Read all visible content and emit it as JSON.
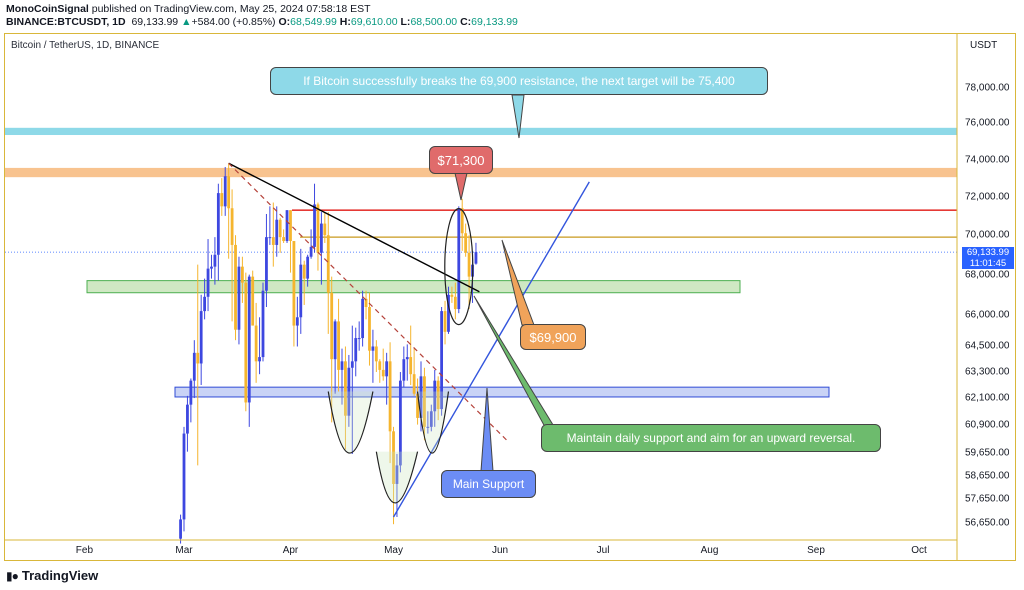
{
  "header": {
    "author": "MonoCoinSignal",
    "published": "published on TradingView.com, May 25, 2024 07:58:18 EST",
    "symbol": "BINANCE:BTCUSDT, 1D",
    "last": "69,133.99",
    "change_arrow": "▲",
    "change": "+584.00 (+0.85%)",
    "o_label": "O:",
    "o": "68,549.99",
    "h_label": "H:",
    "h": "69,610.00",
    "l_label": "L:",
    "l": "68,500.00",
    "c_label": "C:",
    "c": "69,133.99"
  },
  "chart": {
    "symbol_title": "Bitcoin / TetherUS, 1D, BINANCE",
    "currency": "USDT",
    "price_tag_value": "69,133.99",
    "price_tag_time": "11:01:45"
  },
  "annotations": {
    "top_note": "If Bitcoin successfully breaks the 69,900 resistance, the next target will be 75,400",
    "label_71300": "$71,300",
    "label_69900": "$69,900",
    "support_note": "Maintain daily support and aim for an upward reversal.",
    "main_support": "Main Support"
  },
  "footer": {
    "brand": "TradingView",
    "logo_icon": "tradingview-logo-icon"
  },
  "colors": {
    "up": "#089981",
    "candle_yellow": "#f5b52e",
    "candle_blue": "#3d47e0",
    "res_red": "#e53935",
    "res_orange": "#c99a1e",
    "zone_cyan": "#8ed9e8",
    "zone_orange": "#f8c38f",
    "zone_green": "#cfe8c3",
    "zone_blue": "#c9d3f6"
  },
  "chart_data": {
    "type": "candlestick",
    "title": "Bitcoin / TetherUS, 1D, BINANCE",
    "ylabel": "USDT",
    "x_ticks": [
      "Feb",
      "Mar",
      "Apr",
      "May",
      "Jun",
      "Jul",
      "Aug",
      "Sep",
      "Oct"
    ],
    "y_ticks": [
      "78,000.00",
      "76,000.00",
      "74,000.00",
      "72,000.00",
      "70,000.00",
      "68,000.00",
      "66,000.00",
      "64,500.00",
      "63,300.00",
      "62,100.00",
      "60,900.00",
      "59,650.00",
      "58,650.00",
      "57,650.00",
      "56,650.00"
    ],
    "y_scale": "log",
    "ylim": [
      56000,
      80000
    ],
    "levels": {
      "resistance_red": 71300,
      "resistance_orange": 69900,
      "target_zone": [
        75350,
        75750
      ],
      "upper_zone": [
        73050,
        73550
      ],
      "daily_support_zone": [
        67100,
        67700
      ],
      "main_support_zone": [
        62150,
        62600
      ]
    },
    "candles": [
      {
        "d": "2024-02-29",
        "o": 56000,
        "h": 57000,
        "l": 55800,
        "c": 56800
      },
      {
        "d": "2024-03-01",
        "o": 56800,
        "h": 60800,
        "l": 56300,
        "c": 60500
      },
      {
        "d": "2024-03-02",
        "o": 60500,
        "h": 62200,
        "l": 59700,
        "c": 61800
      },
      {
        "d": "2024-03-03",
        "o": 61800,
        "h": 63000,
        "l": 61000,
        "c": 62900
      },
      {
        "d": "2024-03-04",
        "o": 62900,
        "h": 64800,
        "l": 62100,
        "c": 64200
      },
      {
        "d": "2024-03-05",
        "o": 64200,
        "h": 68500,
        "l": 59100,
        "c": 63700
      },
      {
        "d": "2024-03-06",
        "o": 63700,
        "h": 67000,
        "l": 62700,
        "c": 66200
      },
      {
        "d": "2024-03-07",
        "o": 66200,
        "h": 67800,
        "l": 65800,
        "c": 66900
      },
      {
        "d": "2024-03-08",
        "o": 66900,
        "h": 69800,
        "l": 66200,
        "c": 68300
      },
      {
        "d": "2024-03-09",
        "o": 68300,
        "h": 69000,
        "l": 67800,
        "c": 68400
      },
      {
        "d": "2024-03-10",
        "o": 68400,
        "h": 69900,
        "l": 67500,
        "c": 69000
      },
      {
        "d": "2024-03-11",
        "o": 69000,
        "h": 72700,
        "l": 67700,
        "c": 72200
      },
      {
        "d": "2024-03-12",
        "o": 72200,
        "h": 73000,
        "l": 71000,
        "c": 71500
      },
      {
        "d": "2024-03-13",
        "o": 71500,
        "h": 73600,
        "l": 71000,
        "c": 73100
      },
      {
        "d": "2024-03-14",
        "o": 73100,
        "h": 73800,
        "l": 68800,
        "c": 71400
      },
      {
        "d": "2024-03-15",
        "o": 71400,
        "h": 72400,
        "l": 65700,
        "c": 69500
      },
      {
        "d": "2024-03-16",
        "o": 69500,
        "h": 70000,
        "l": 64800,
        "c": 65300
      },
      {
        "d": "2024-03-17",
        "o": 65300,
        "h": 68900,
        "l": 64600,
        "c": 68400
      },
      {
        "d": "2024-03-18",
        "o": 68400,
        "h": 68900,
        "l": 66600,
        "c": 67600
      },
      {
        "d": "2024-03-19",
        "o": 67600,
        "h": 68100,
        "l": 61500,
        "c": 61900
      },
      {
        "d": "2024-03-20",
        "o": 61900,
        "h": 68000,
        "l": 60800,
        "c": 67900
      },
      {
        "d": "2024-03-21",
        "o": 67900,
        "h": 68200,
        "l": 65500,
        "c": 65500
      },
      {
        "d": "2024-03-22",
        "o": 65500,
        "h": 66600,
        "l": 62800,
        "c": 63800
      },
      {
        "d": "2024-03-23",
        "o": 63800,
        "h": 65900,
        "l": 63200,
        "c": 64000
      },
      {
        "d": "2024-03-24",
        "o": 64000,
        "h": 67600,
        "l": 63800,
        "c": 67200
      },
      {
        "d": "2024-03-25",
        "o": 67200,
        "h": 71100,
        "l": 66400,
        "c": 69900
      },
      {
        "d": "2024-03-26",
        "o": 69900,
        "h": 71500,
        "l": 69500,
        "c": 69900
      },
      {
        "d": "2024-03-27",
        "o": 69900,
        "h": 71700,
        "l": 68400,
        "c": 69500
      },
      {
        "d": "2024-03-28",
        "o": 69500,
        "h": 71500,
        "l": 68900,
        "c": 70800
      },
      {
        "d": "2024-03-29",
        "o": 70800,
        "h": 70900,
        "l": 69100,
        "c": 69900
      },
      {
        "d": "2024-03-30",
        "o": 69900,
        "h": 70300,
        "l": 69600,
        "c": 69700
      },
      {
        "d": "2024-03-31",
        "o": 69700,
        "h": 71300,
        "l": 69600,
        "c": 71300
      },
      {
        "d": "2024-04-01",
        "o": 71300,
        "h": 71300,
        "l": 68100,
        "c": 69700
      },
      {
        "d": "2024-04-02",
        "o": 69700,
        "h": 69700,
        "l": 64500,
        "c": 65500
      },
      {
        "d": "2024-04-03",
        "o": 65500,
        "h": 66900,
        "l": 64500,
        "c": 65900
      },
      {
        "d": "2024-04-04",
        "o": 65900,
        "h": 69300,
        "l": 65100,
        "c": 68500
      },
      {
        "d": "2024-04-05",
        "o": 68500,
        "h": 68700,
        "l": 66500,
        "c": 67800
      },
      {
        "d": "2024-04-06",
        "o": 67800,
        "h": 69000,
        "l": 67400,
        "c": 68900
      },
      {
        "d": "2024-04-07",
        "o": 68900,
        "h": 70300,
        "l": 68800,
        "c": 69400
      },
      {
        "d": "2024-04-08",
        "o": 69400,
        "h": 72700,
        "l": 69100,
        "c": 71600
      },
      {
        "d": "2024-04-09",
        "o": 71600,
        "h": 71700,
        "l": 68200,
        "c": 69100
      },
      {
        "d": "2024-04-10",
        "o": 69100,
        "h": 71200,
        "l": 67500,
        "c": 70600
      },
      {
        "d": "2024-04-11",
        "o": 70600,
        "h": 71200,
        "l": 69600,
        "c": 70000
      },
      {
        "d": "2024-04-12",
        "o": 70000,
        "h": 71200,
        "l": 65100,
        "c": 67100
      },
      {
        "d": "2024-04-13",
        "o": 67100,
        "h": 67900,
        "l": 61000,
        "c": 63900
      },
      {
        "d": "2024-04-14",
        "o": 63900,
        "h": 65800,
        "l": 62300,
        "c": 65700
      },
      {
        "d": "2024-04-15",
        "o": 65700,
        "h": 66800,
        "l": 62400,
        "c": 63400
      },
      {
        "d": "2024-04-16",
        "o": 63400,
        "h": 64400,
        "l": 61800,
        "c": 63800
      },
      {
        "d": "2024-04-17",
        "o": 63800,
        "h": 64500,
        "l": 59800,
        "c": 61300
      },
      {
        "d": "2024-04-18",
        "o": 61300,
        "h": 64100,
        "l": 60800,
        "c": 63500
      },
      {
        "d": "2024-04-19",
        "o": 63500,
        "h": 65500,
        "l": 59600,
        "c": 63800
      },
      {
        "d": "2024-04-20",
        "o": 63800,
        "h": 65400,
        "l": 63100,
        "c": 64900
      },
      {
        "d": "2024-04-21",
        "o": 64900,
        "h": 65700,
        "l": 64300,
        "c": 64900
      },
      {
        "d": "2024-04-22",
        "o": 64900,
        "h": 67200,
        "l": 64500,
        "c": 66800
      },
      {
        "d": "2024-04-23",
        "o": 66800,
        "h": 67200,
        "l": 65800,
        "c": 66400
      },
      {
        "d": "2024-04-24",
        "o": 66400,
        "h": 67100,
        "l": 63600,
        "c": 64300
      },
      {
        "d": "2024-04-25",
        "o": 64300,
        "h": 65300,
        "l": 62800,
        "c": 64500
      },
      {
        "d": "2024-04-26",
        "o": 64500,
        "h": 64800,
        "l": 63300,
        "c": 63800
      },
      {
        "d": "2024-04-27",
        "o": 63800,
        "h": 63900,
        "l": 62800,
        "c": 63400
      },
      {
        "d": "2024-04-28",
        "o": 63400,
        "h": 64400,
        "l": 62900,
        "c": 63100
      },
      {
        "d": "2024-04-29",
        "o": 63100,
        "h": 64200,
        "l": 61800,
        "c": 63800
      },
      {
        "d": "2024-04-30",
        "o": 63800,
        "h": 64700,
        "l": 59200,
        "c": 60600
      },
      {
        "d": "2024-05-01",
        "o": 60600,
        "h": 60800,
        "l": 56600,
        "c": 58300
      },
      {
        "d": "2024-05-02",
        "o": 58300,
        "h": 59600,
        "l": 56900,
        "c": 59100
      },
      {
        "d": "2024-05-03",
        "o": 59100,
        "h": 63300,
        "l": 58800,
        "c": 62900
      },
      {
        "d": "2024-05-04",
        "o": 62900,
        "h": 64500,
        "l": 62600,
        "c": 63900
      },
      {
        "d": "2024-05-05",
        "o": 63900,
        "h": 64600,
        "l": 62900,
        "c": 64000
      },
      {
        "d": "2024-05-06",
        "o": 64000,
        "h": 65500,
        "l": 62700,
        "c": 63200
      },
      {
        "d": "2024-05-07",
        "o": 63200,
        "h": 64400,
        "l": 62200,
        "c": 62300
      },
      {
        "d": "2024-05-08",
        "o": 62300,
        "h": 63000,
        "l": 60900,
        "c": 61200
      },
      {
        "d": "2024-05-09",
        "o": 61200,
        "h": 63800,
        "l": 60600,
        "c": 63100
      },
      {
        "d": "2024-05-10",
        "o": 63100,
        "h": 63500,
        "l": 60200,
        "c": 60800
      },
      {
        "d": "2024-05-11",
        "o": 60800,
        "h": 61500,
        "l": 60500,
        "c": 60800
      },
      {
        "d": "2024-05-12",
        "o": 60800,
        "h": 61800,
        "l": 60600,
        "c": 61500
      },
      {
        "d": "2024-05-13",
        "o": 61500,
        "h": 63400,
        "l": 60800,
        "c": 62900
      },
      {
        "d": "2024-05-14",
        "o": 62900,
        "h": 63100,
        "l": 61100,
        "c": 61600
      },
      {
        "d": "2024-05-15",
        "o": 61600,
        "h": 66400,
        "l": 61300,
        "c": 66200
      },
      {
        "d": "2024-05-16",
        "o": 66200,
        "h": 66700,
        "l": 64600,
        "c": 65200
      },
      {
        "d": "2024-05-17",
        "o": 65200,
        "h": 67400,
        "l": 65100,
        "c": 67000
      },
      {
        "d": "2024-05-18",
        "o": 67000,
        "h": 67400,
        "l": 66600,
        "c": 66900
      },
      {
        "d": "2024-05-19",
        "o": 66900,
        "h": 67600,
        "l": 65800,
        "c": 66300
      },
      {
        "d": "2024-05-20",
        "o": 66300,
        "h": 71500,
        "l": 66100,
        "c": 71400
      },
      {
        "d": "2024-05-21",
        "o": 71400,
        "h": 71900,
        "l": 69200,
        "c": 70100
      },
      {
        "d": "2024-05-22",
        "o": 70100,
        "h": 70600,
        "l": 68900,
        "c": 69100
      },
      {
        "d": "2024-05-23",
        "o": 69100,
        "h": 70000,
        "l": 66300,
        "c": 67900
      },
      {
        "d": "2024-05-24",
        "o": 67900,
        "h": 69200,
        "l": 66600,
        "c": 68500
      },
      {
        "d": "2024-05-25",
        "o": 68550,
        "h": 69610,
        "l": 68500,
        "c": 69134
      }
    ]
  }
}
